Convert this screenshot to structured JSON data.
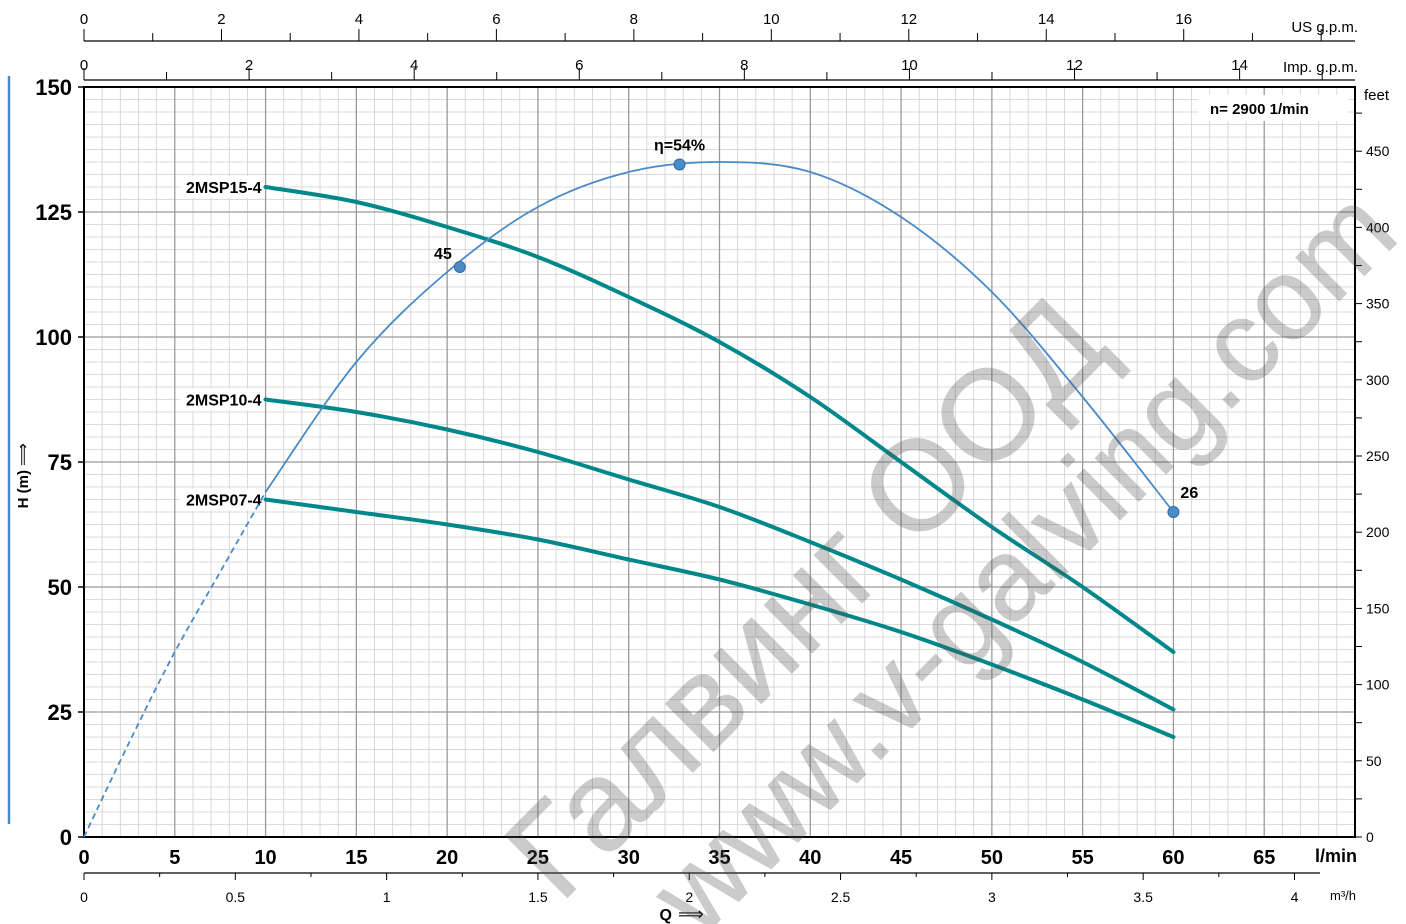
{
  "chart_data": {
    "type": "line",
    "title": "",
    "speed_label": "n= 2900  1/min",
    "ylabel": "H (m)",
    "ylabel_arrow": "⟹",
    "ylim": [
      0,
      150
    ],
    "yticks": [
      0,
      25,
      50,
      75,
      100,
      125,
      150
    ],
    "y_feet_label": "feet",
    "y_feet_ticks": [
      0,
      50,
      100,
      150,
      200,
      250,
      300,
      350,
      400,
      450
    ],
    "xlabel": "Q",
    "xlabel_arrow": "⟹",
    "xlim": [
      0,
      70
    ],
    "x_lmin_label": "l/min",
    "x_lmin_ticks": [
      0,
      5,
      10,
      15,
      20,
      25,
      30,
      35,
      40,
      45,
      50,
      55,
      60,
      65
    ],
    "x_m3h_label": "m³/h",
    "x_m3h_ticks": [
      "0",
      "0.5",
      "1",
      "1.5",
      "2",
      "2.5",
      "3",
      "3.5",
      "4"
    ],
    "x_usgpm_label": "US g.p.m.",
    "x_usgpm_ticks": [
      0,
      2,
      4,
      6,
      8,
      10,
      12,
      14,
      16
    ],
    "x_impgpm_label": "Imp. g.p.m.",
    "x_impgpm_ticks": [
      0,
      2,
      4,
      6,
      8,
      10,
      12,
      14
    ],
    "grid": true,
    "series": [
      {
        "name": "2MSP15-4",
        "color": "#00878a",
        "x": [
          10,
          15,
          20,
          25,
          30,
          35,
          40,
          45,
          50,
          55,
          60
        ],
        "y": [
          130,
          127,
          122,
          116,
          108,
          99,
          88,
          75,
          62,
          50,
          37
        ]
      },
      {
        "name": "2MSP10-4",
        "color": "#00878a",
        "x": [
          10,
          15,
          20,
          25,
          30,
          35,
          40,
          45,
          50,
          55,
          60
        ],
        "y": [
          87.5,
          85,
          81.5,
          77,
          71.5,
          66,
          59,
          51.5,
          43.5,
          35,
          25.5
        ]
      },
      {
        "name": "2MSP07-4",
        "color": "#00878a",
        "x": [
          10,
          15,
          20,
          25,
          30,
          35,
          40,
          45,
          50,
          55,
          60
        ],
        "y": [
          67.5,
          65,
          62.5,
          59.5,
          55.5,
          51.5,
          46.5,
          41,
          34.5,
          27.5,
          20
        ]
      }
    ],
    "efficiency_curve": {
      "color": "#4a8ac7",
      "dashed_x": [
        0,
        2.5,
        5,
        7.5,
        10
      ],
      "dashed_y": [
        0,
        19,
        37,
        53,
        69
      ],
      "solid_x": [
        10,
        15,
        20,
        25,
        30,
        35,
        40,
        45,
        50,
        55,
        60
      ],
      "solid_y": [
        69,
        95,
        113,
        126,
        133,
        135,
        133,
        124,
        109,
        88,
        65
      ],
      "markers": [
        {
          "x": 20.7,
          "y": 114,
          "label": "45"
        },
        {
          "x": 32.8,
          "y": 134.5,
          "label": "η=54%"
        },
        {
          "x": 60,
          "y": 65,
          "label": "26"
        }
      ]
    },
    "watermark": [
      "Галвинг ООД",
      "www.v-galving.com"
    ]
  }
}
